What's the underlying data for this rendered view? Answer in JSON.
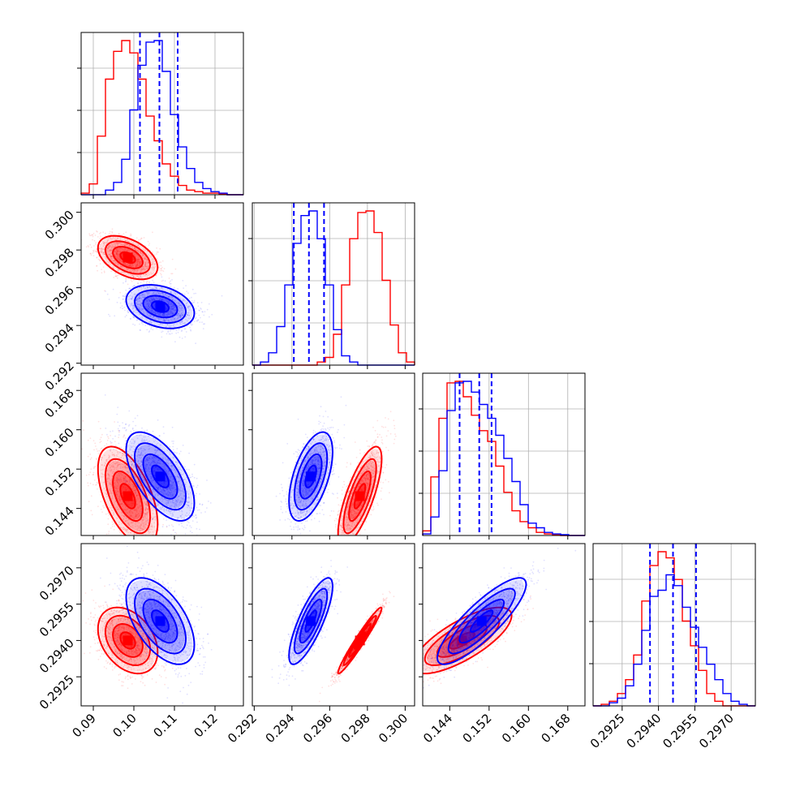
{
  "chart_data": {
    "type": "corner",
    "params": [
      {
        "ticks": [
          "0.09",
          "0.10",
          "0.11",
          "0.12"
        ],
        "tick_values": [
          0.09,
          0.1,
          0.11,
          0.12
        ],
        "range": [
          0.087,
          0.127
        ]
      },
      {
        "ticks": [
          "0.292",
          "0.294",
          "0.296",
          "0.298",
          "0.300"
        ],
        "tick_values": [
          0.292,
          0.294,
          0.296,
          0.298,
          0.3
        ],
        "range": [
          0.2919,
          0.3005
        ]
      },
      {
        "ticks": [
          "0.144",
          "0.152",
          "0.160",
          "0.168"
        ],
        "tick_values": [
          0.144,
          0.152,
          0.16,
          0.168
        ],
        "range": [
          0.1385,
          0.1715
        ]
      },
      {
        "ticks": [
          "0.2925",
          "0.2940",
          "0.2955",
          "0.2970"
        ],
        "tick_values": [
          0.2925,
          0.294,
          0.2955,
          0.297
        ],
        "range": [
          0.2913,
          0.298
        ]
      }
    ],
    "series": [
      {
        "color": "#ff0000",
        "means": [
          0.0985,
          0.2976,
          0.1465,
          0.294
        ],
        "stds": [
          0.0035,
          0.00055,
          0.0048,
          0.00065
        ],
        "correlations": [
          {
            "i": 1,
            "j": 0,
            "rho": -0.45
          },
          {
            "i": 2,
            "j": 0,
            "rho": -0.55
          },
          {
            "i": 2,
            "j": 1,
            "rho": 0.75
          },
          {
            "i": 3,
            "j": 0,
            "rho": -0.35
          },
          {
            "i": 3,
            "j": 1,
            "rho": 0.97
          },
          {
            "i": 3,
            "j": 2,
            "rho": 0.75
          }
        ],
        "hist": [
          [
            0.01,
            0.07,
            0.38,
            0.75,
            0.93,
            1.0,
            0.92,
            0.75,
            0.51,
            0.35,
            0.2,
            0.12,
            0.06,
            0.03,
            0.02,
            0.01,
            0.01,
            0.005,
            0.0,
            0.0
          ],
          [
            0.0,
            0.0,
            0.0,
            0.0,
            0.0,
            0.0,
            0.0,
            0.0,
            0.02,
            0.05,
            0.2,
            0.52,
            0.82,
            0.99,
            1.0,
            0.86,
            0.55,
            0.26,
            0.08,
            0.02
          ],
          [
            0.03,
            0.38,
            0.76,
            0.99,
            1.0,
            0.9,
            0.78,
            0.68,
            0.61,
            0.45,
            0.28,
            0.16,
            0.09,
            0.05,
            0.02,
            0.01,
            0.005,
            0.0,
            0.0,
            0.0
          ],
          [
            0.0,
            0.01,
            0.03,
            0.08,
            0.17,
            0.33,
            0.68,
            0.91,
            1.0,
            0.96,
            0.82,
            0.55,
            0.39,
            0.23,
            0.08,
            0.03,
            0.0,
            0.0,
            0.0,
            0.0
          ]
        ]
      },
      {
        "color": "#0000ff",
        "means": [
          0.1065,
          0.295,
          0.1505,
          0.2948
        ],
        "stds": [
          0.004,
          0.00055,
          0.0043,
          0.00085
        ],
        "correlations": [
          {
            "i": 1,
            "j": 0,
            "rho": -0.3
          },
          {
            "i": 2,
            "j": 0,
            "rho": -0.6
          },
          {
            "i": 2,
            "j": 1,
            "rho": 0.55
          },
          {
            "i": 3,
            "j": 0,
            "rho": -0.55
          },
          {
            "i": 3,
            "j": 1,
            "rho": 0.8
          },
          {
            "i": 3,
            "j": 2,
            "rho": 0.85
          }
        ],
        "quantiles": [
          [
            0.1015,
            0.1063,
            0.1108
          ],
          [
            0.2941,
            0.2949,
            0.2957
          ],
          [
            0.146,
            0.15,
            0.1525
          ],
          [
            0.29365,
            0.2946,
            0.29555
          ]
        ],
        "hist": [
          [
            0.0,
            0.0,
            0.0,
            0.03,
            0.08,
            0.23,
            0.55,
            0.84,
            0.99,
            1.0,
            0.8,
            0.52,
            0.31,
            0.17,
            0.08,
            0.04,
            0.02,
            0.01,
            0.0,
            0.0
          ],
          [
            0.0,
            0.02,
            0.08,
            0.25,
            0.52,
            0.79,
            0.97,
            1.0,
            0.82,
            0.52,
            0.23,
            0.06,
            0.02,
            0.0,
            0.0,
            0.0,
            0.0,
            0.0,
            0.0,
            0.0
          ],
          [
            0.01,
            0.12,
            0.42,
            0.81,
            0.99,
            1.0,
            0.93,
            0.85,
            0.76,
            0.65,
            0.5,
            0.35,
            0.2,
            0.08,
            0.05,
            0.02,
            0.01,
            0.005,
            0.0,
            0.0
          ],
          [
            0.0,
            0.0,
            0.02,
            0.05,
            0.13,
            0.27,
            0.49,
            0.71,
            0.75,
            0.85,
            0.78,
            0.64,
            0.51,
            0.38,
            0.27,
            0.17,
            0.08,
            0.03,
            0.01,
            0.0
          ]
        ]
      }
    ],
    "hist_bins": 20,
    "contour_levels": [
      0.5,
      1.0,
      1.5,
      2.0
    ],
    "grid": true,
    "legend": "none"
  }
}
